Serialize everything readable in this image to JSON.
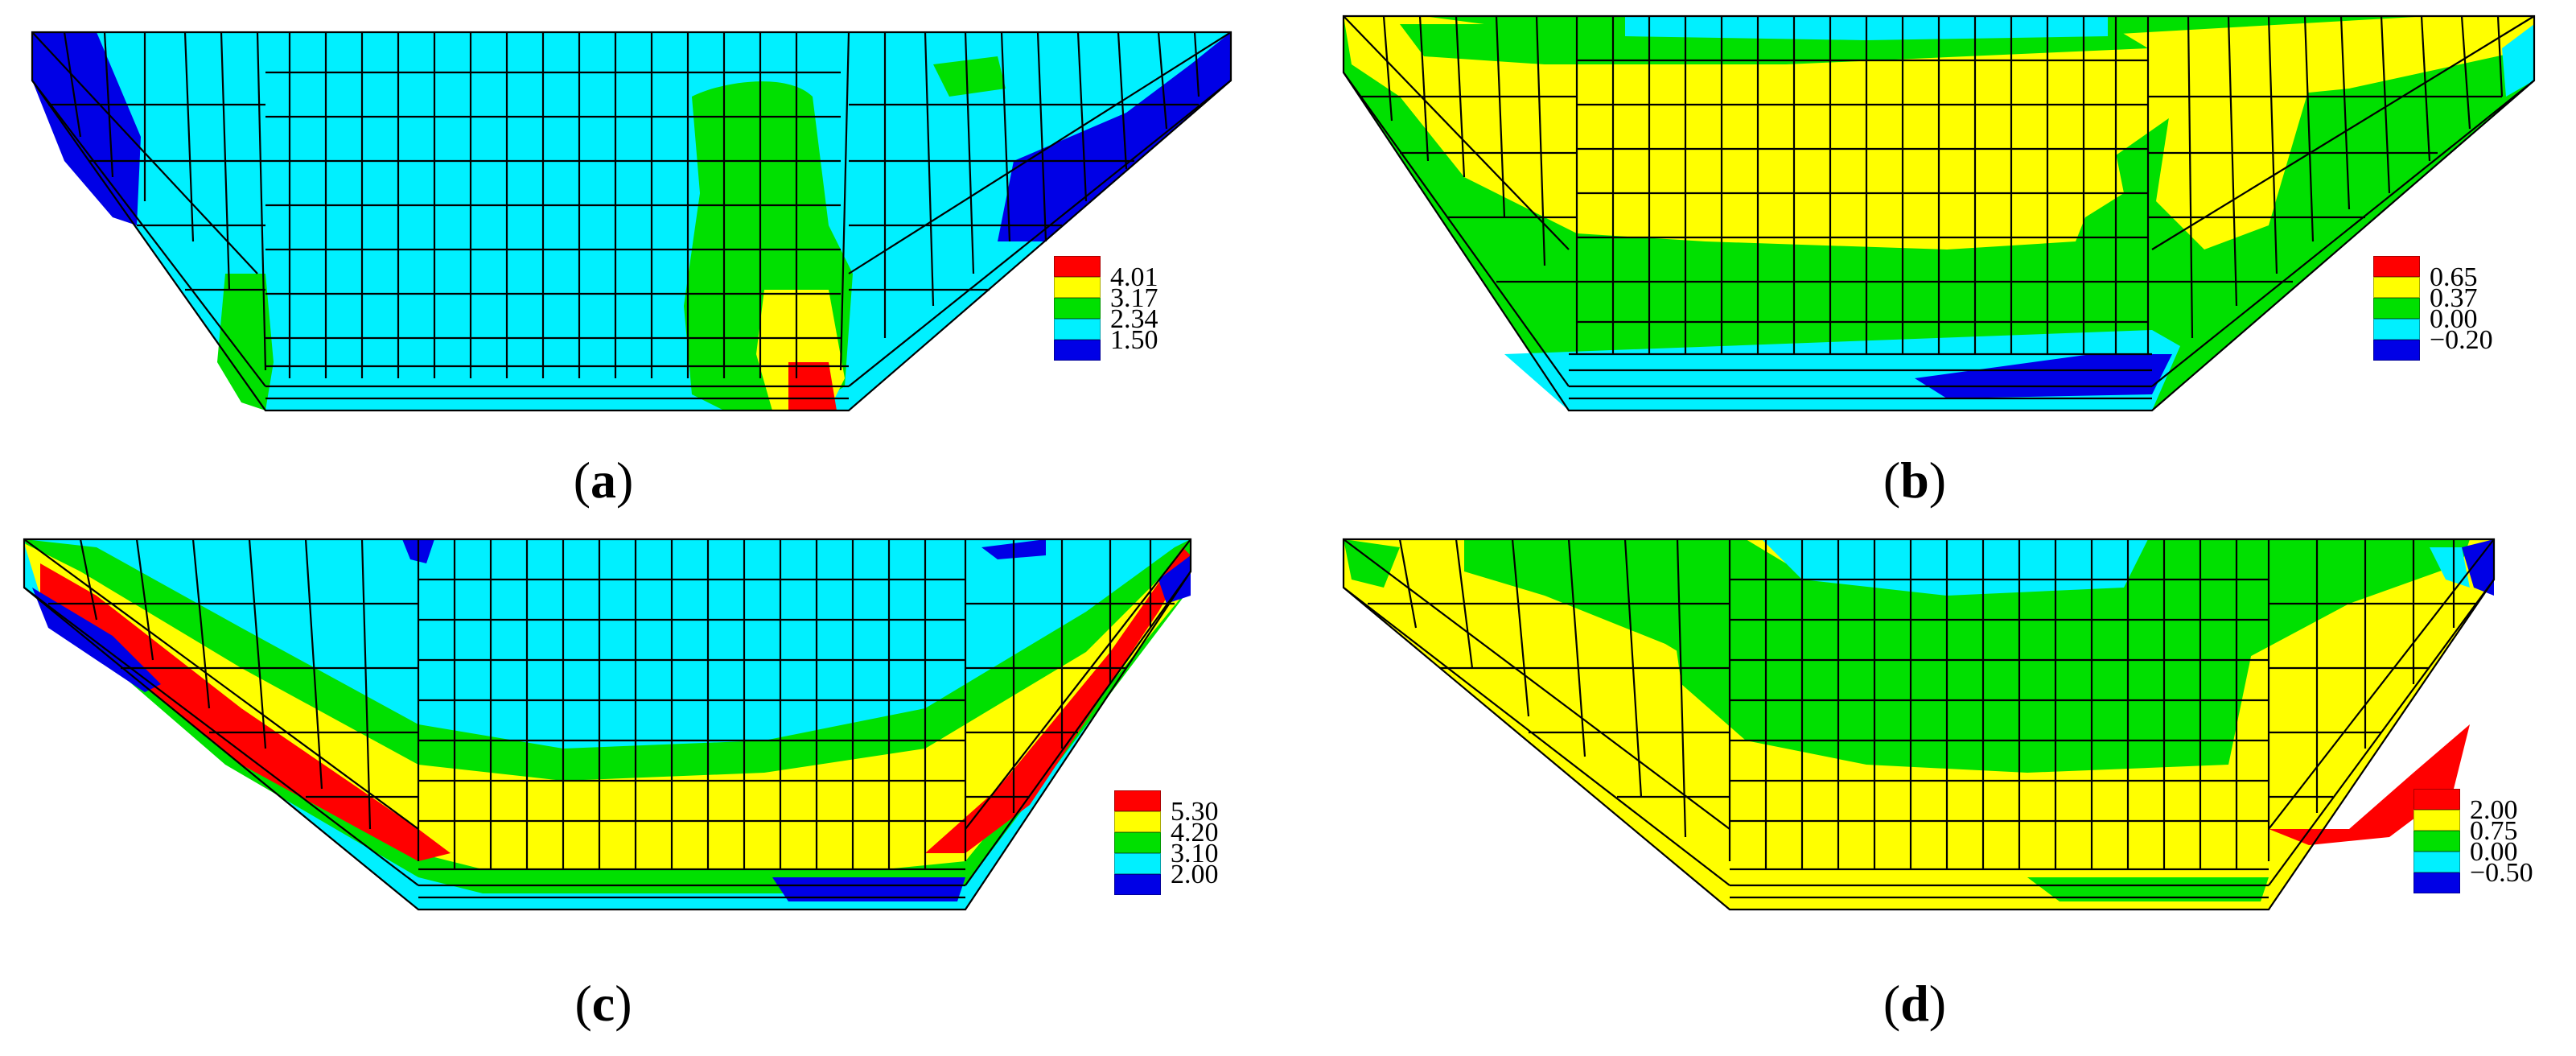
{
  "colors": {
    "red": "#ff0000",
    "yellow": "#ffff00",
    "green": "#00e000",
    "cyan": "#00f0ff",
    "blue": "#0000e6",
    "mesh": "#000000"
  },
  "panels": [
    {
      "id": "a",
      "caption": "a",
      "legend": {
        "swatch_colors": [
          "red",
          "yellow",
          "green",
          "cyan",
          "blue"
        ],
        "labels": [
          "4.01",
          "3.17",
          "2.34",
          "1.50"
        ]
      }
    },
    {
      "id": "b",
      "caption": "b",
      "legend": {
        "swatch_colors": [
          "red",
          "yellow",
          "green",
          "cyan",
          "blue"
        ],
        "labels": [
          "0.65",
          "0.37",
          "0.00",
          "−0.20"
        ]
      }
    },
    {
      "id": "c",
      "caption": "c",
      "legend": {
        "swatch_colors": [
          "red",
          "yellow",
          "green",
          "cyan",
          "blue"
        ],
        "labels": [
          "5.30",
          "4.20",
          "3.10",
          "2.00"
        ]
      }
    },
    {
      "id": "d",
      "caption": "d",
      "legend": {
        "swatch_colors": [
          "red",
          "yellow",
          "green",
          "cyan",
          "blue"
        ],
        "labels": [
          "2.00",
          "0.75",
          "0.00",
          "−0.50"
        ]
      }
    }
  ]
}
